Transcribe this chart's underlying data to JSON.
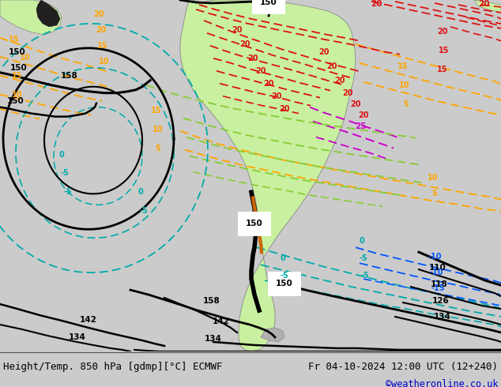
{
  "title_left": "Height/Temp. 850 hPa [gdmp][°C] ECMWF",
  "title_right": "Fr 04-10-2024 12:00 UTC (12+240)",
  "watermark": "©weatheronline.co.uk",
  "fig_width": 6.34,
  "fig_height": 4.9,
  "dpi": 100,
  "background_color": "#cbcbcb",
  "map_bg": "#cbcbcb",
  "bottom_bg": "#e0e0e0",
  "title_color": "#000000",
  "watermark_color": "#0000cc",
  "title_fontsize": 9.0,
  "watermark_fontsize": 8.5,
  "land_color": "#c8f0a0",
  "contours": {
    "black_lw": 2.0,
    "temp_lw": 1.3
  },
  "colors": {
    "black": "#000000",
    "orange": "#ffa500",
    "red": "#dd1111",
    "teal": "#00aaaa",
    "lime": "#88cc33",
    "blue": "#0055ff",
    "magenta": "#cc00cc",
    "dark_orange": "#cc6600"
  }
}
